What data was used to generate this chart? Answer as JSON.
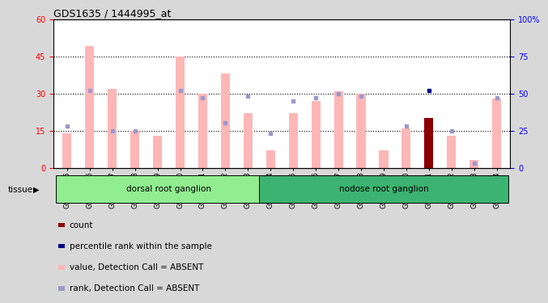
{
  "title": "GDS1635 / 1444995_at",
  "samples": [
    "GSM63675",
    "GSM63676",
    "GSM63677",
    "GSM63678",
    "GSM63679",
    "GSM63680",
    "GSM63681",
    "GSM63682",
    "GSM63683",
    "GSM63684",
    "GSM63685",
    "GSM63686",
    "GSM63687",
    "GSM63688",
    "GSM63689",
    "GSM63690",
    "GSM63691",
    "GSM63692",
    "GSM63693",
    "GSM63694"
  ],
  "bar_values": [
    14,
    49,
    32,
    15,
    13,
    45,
    30,
    38,
    22,
    7,
    22,
    27,
    31,
    30,
    7,
    16,
    20,
    13,
    3,
    28
  ],
  "bar_colors": [
    "#ffb6b6",
    "#ffb6b6",
    "#ffb6b6",
    "#ffb6b6",
    "#ffb6b6",
    "#ffb6b6",
    "#ffb6b6",
    "#ffb6b6",
    "#ffb6b6",
    "#ffb6b6",
    "#ffb6b6",
    "#ffb6b6",
    "#ffb6b6",
    "#ffb6b6",
    "#ffb6b6",
    "#ffb6b6",
    "#8b0000",
    "#ffb6b6",
    "#ffb6b6",
    "#ffb6b6"
  ],
  "rank_values": [
    28,
    52,
    25,
    25,
    null,
    52,
    47,
    30,
    48,
    23,
    45,
    47,
    50,
    48,
    null,
    28,
    52,
    25,
    3,
    47
  ],
  "rank_dark": [
    false,
    false,
    false,
    false,
    false,
    false,
    false,
    false,
    false,
    false,
    false,
    false,
    false,
    false,
    false,
    false,
    true,
    false,
    false,
    false
  ],
  "left_ylim": [
    0,
    60
  ],
  "right_ylim": [
    0,
    100
  ],
  "left_yticks": [
    0,
    15,
    30,
    45,
    60
  ],
  "right_yticks": [
    0,
    25,
    50,
    75,
    100
  ],
  "right_ytick_labels": [
    "0",
    "25",
    "50",
    "75",
    "100%"
  ],
  "hlines": [
    15,
    30,
    45
  ],
  "tissue_groups": [
    {
      "label": "dorsal root ganglion",
      "start": 0,
      "end": 9,
      "color": "#90ee90"
    },
    {
      "label": "nodose root ganglion",
      "start": 9,
      "end": 19,
      "color": "#3cb371"
    }
  ],
  "bg_color": "#d8d8d8",
  "plot_bg": "#ffffff",
  "legend_items": [
    {
      "color": "#8b0000",
      "label": "count"
    },
    {
      "color": "#00008b",
      "label": "percentile rank within the sample"
    },
    {
      "color": "#ffb6b6",
      "label": "value, Detection Call = ABSENT"
    },
    {
      "color": "#9999cc",
      "label": "rank, Detection Call = ABSENT"
    }
  ],
  "bar_width": 0.4
}
